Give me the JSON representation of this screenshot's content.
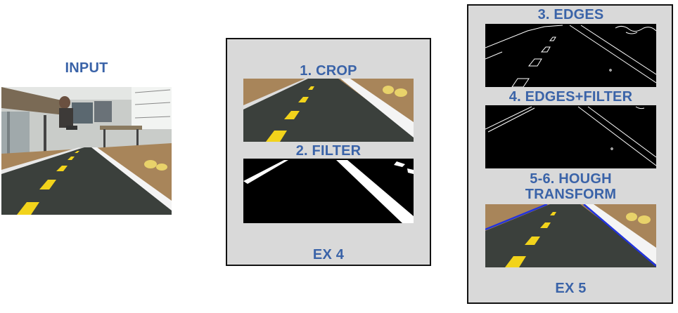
{
  "input": {
    "title": "INPUT"
  },
  "ex4": {
    "footer": "EX 4",
    "steps": [
      {
        "label": "1. CROP"
      },
      {
        "label": "2. FILTER"
      }
    ]
  },
  "ex5": {
    "footer": "EX 5",
    "steps": [
      {
        "label": "3. EDGES"
      },
      {
        "label": "4. EDGES+FILTER"
      },
      {
        "label_line1": "5-6. HOUGH",
        "label_line2": "TRANSFORM"
      }
    ]
  },
  "colors": {
    "label": "#3a63a8",
    "panel": "#d9d9d9",
    "road": "#3b403c",
    "lane_yellow": "#f2d31b",
    "lane_white": "#f4f4f4",
    "floor": "#a8855a",
    "hough_line": "#2233dd"
  }
}
